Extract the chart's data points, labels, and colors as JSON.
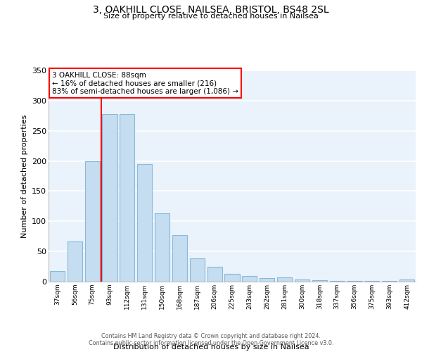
{
  "title_line1": "3, OAKHILL CLOSE, NAILSEA, BRISTOL, BS48 2SL",
  "title_line2": "Size of property relative to detached houses in Nailsea",
  "xlabel": "Distribution of detached houses by size in Nailsea",
  "ylabel": "Number of detached properties",
  "bar_color": "#c5ddf0",
  "bar_edge_color": "#8ab8d8",
  "categories": [
    "37sqm",
    "56sqm",
    "75sqm",
    "93sqm",
    "112sqm",
    "131sqm",
    "150sqm",
    "168sqm",
    "187sqm",
    "206sqm",
    "225sqm",
    "243sqm",
    "262sqm",
    "281sqm",
    "300sqm",
    "318sqm",
    "337sqm",
    "356sqm",
    "375sqm",
    "393sqm",
    "412sqm"
  ],
  "values": [
    17,
    67,
    200,
    278,
    278,
    195,
    113,
    77,
    38,
    24,
    13,
    9,
    6,
    7,
    4,
    2,
    1,
    1,
    1,
    1,
    3
  ],
  "ylim": [
    0,
    350
  ],
  "yticks": [
    0,
    50,
    100,
    150,
    200,
    250,
    300,
    350
  ],
  "background_color": "#eaf3fb",
  "red_line_x": 2.5,
  "annotation_text_line1": "3 OAKHILL CLOSE: 88sqm",
  "annotation_text_line2": "← 16% of detached houses are smaller (216)",
  "annotation_text_line3": "83% of semi-detached houses are larger (1,086) →",
  "footer_line1": "Contains HM Land Registry data © Crown copyright and database right 2024.",
  "footer_line2": "Contains public sector information licensed under the Open Government Licence v3.0."
}
